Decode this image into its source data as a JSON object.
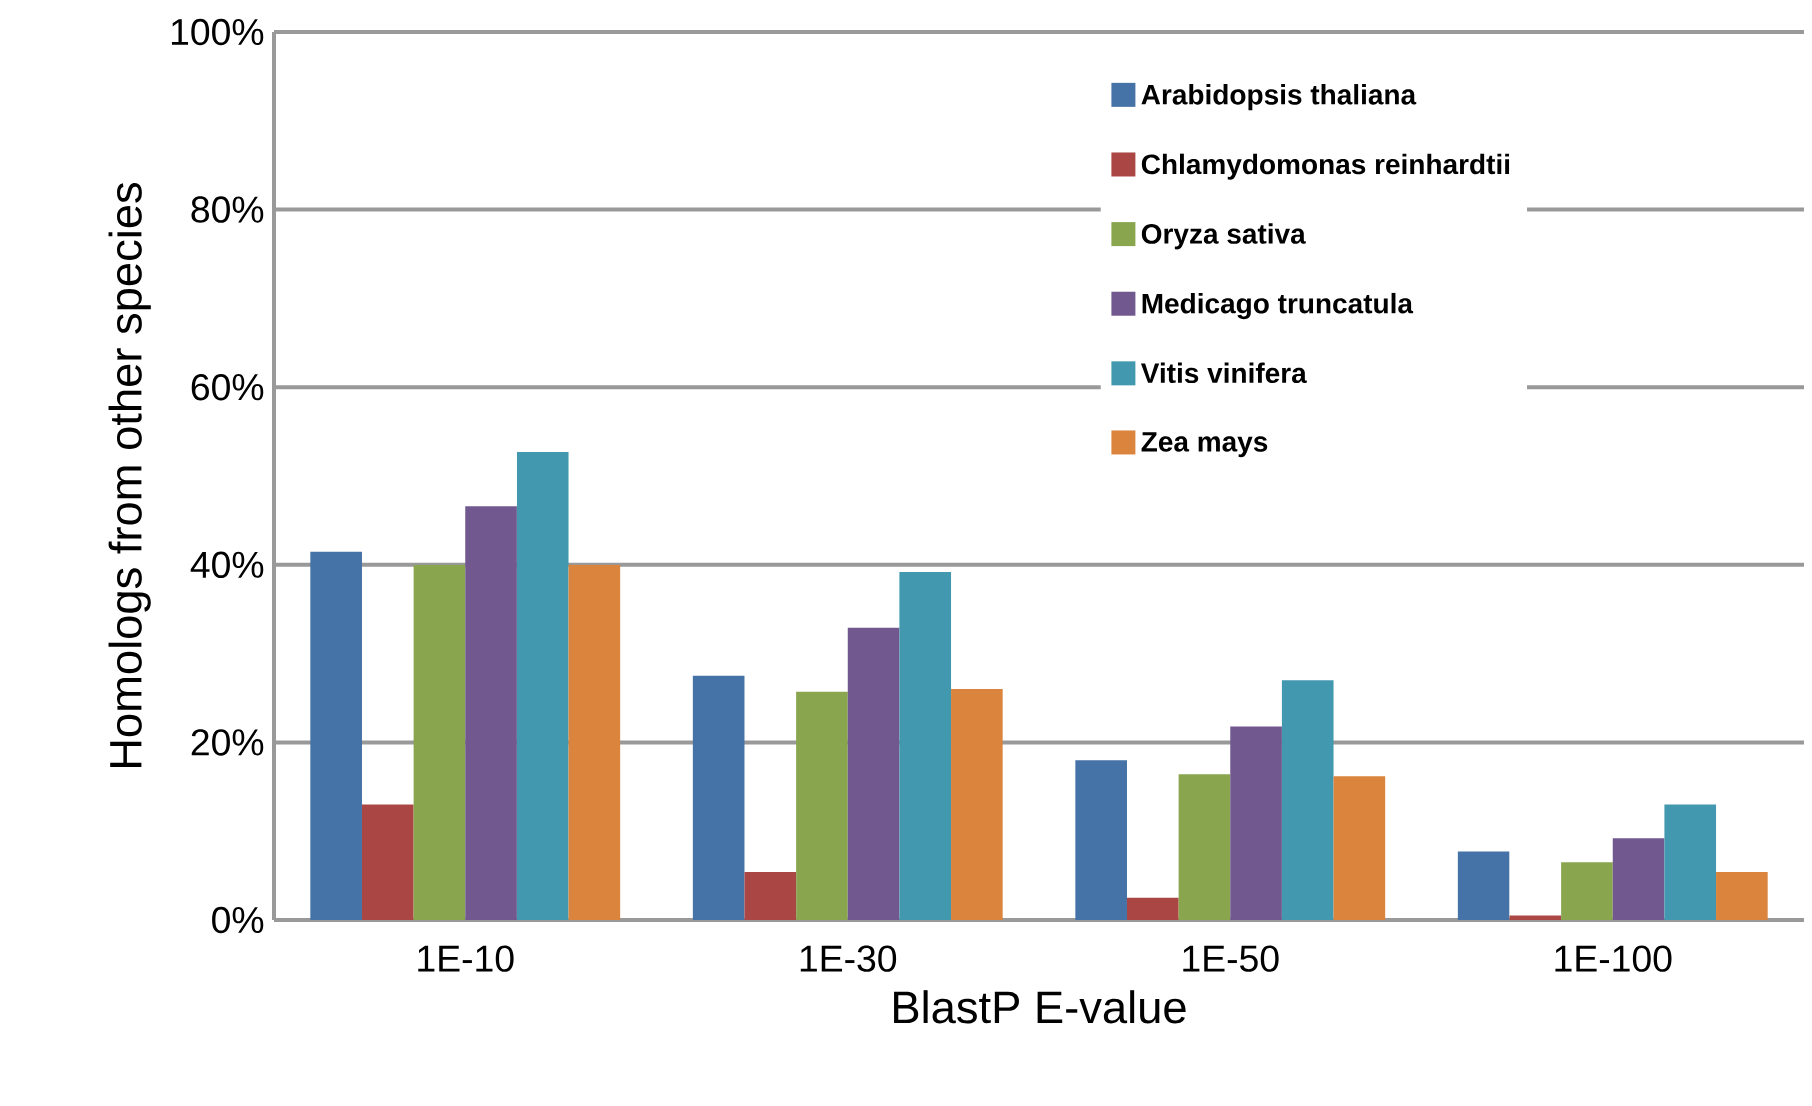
{
  "chart_data": {
    "type": "bar",
    "xlabel": "BlastP E-value",
    "ylabel": "Homologs from other species",
    "categories": [
      "1E-10",
      "1E-30",
      "1E-50",
      "1E-100"
    ],
    "series": [
      {
        "name": "Arabidopsis thaliana",
        "color": "#4572a7",
        "values": [
          41.5,
          27.5,
          18,
          7.7
        ]
      },
      {
        "name": "Chlamydomonas reinhardtii",
        "color": "#aa4643",
        "values": [
          13,
          5.4,
          2.5,
          0.5
        ]
      },
      {
        "name": "Oryza sativa",
        "color": "#89a54e",
        "values": [
          40,
          25.7,
          16.4,
          6.5
        ]
      },
      {
        "name": "Medicago truncatula",
        "color": "#71588f",
        "values": [
          46.6,
          32.9,
          21.8,
          9.2
        ]
      },
      {
        "name": "Vitis vinifera",
        "color": "#4198af",
        "values": [
          52.7,
          39.2,
          27,
          13
        ]
      },
      {
        "name": "Zea mays",
        "color": "#db843d",
        "values": [
          40,
          26,
          16.2,
          5.4
        ]
      }
    ],
    "ylim": [
      0,
      100
    ],
    "yticks": [
      {
        "value": 0,
        "label": "0%"
      },
      {
        "value": 20,
        "label": "20%"
      },
      {
        "value": 40,
        "label": "40%"
      },
      {
        "value": 60,
        "label": "60%"
      },
      {
        "value": 80,
        "label": "80%"
      },
      {
        "value": 100,
        "label": "100%"
      }
    ],
    "grid": "y",
    "legend": "top right"
  }
}
